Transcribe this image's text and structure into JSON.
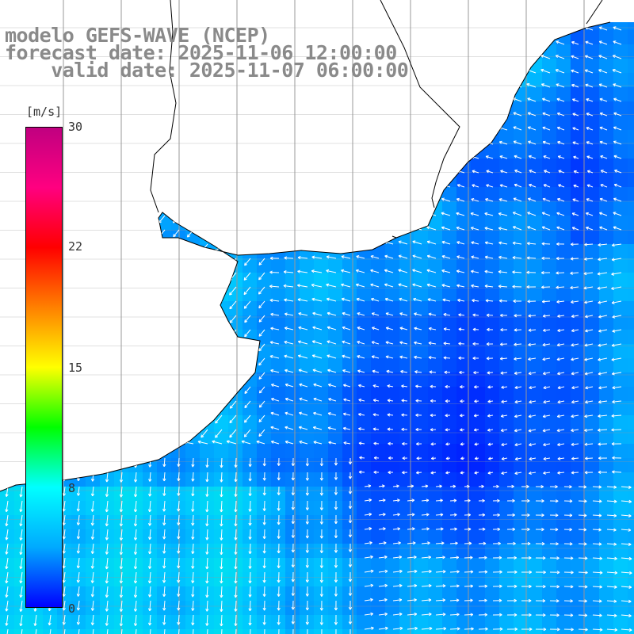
{
  "header": {
    "model_line": "modelo GEFS-WAVE (NCEP)",
    "forecast_line": "forecast date: 2025-11-06 12:00:00",
    "valid_line": "    valid date: 2025-11-07 06:00:00"
  },
  "colorbar": {
    "unit": "[m/s]",
    "ticks": [
      "30",
      "22",
      "15",
      "8",
      "0"
    ],
    "tick_values": [
      30,
      22,
      15,
      8,
      0
    ],
    "range": [
      0,
      30
    ],
    "colors": [
      "#0000ff",
      "#00aaff",
      "#00ffff",
      "#00ff00",
      "#ffff00",
      "#ff8000",
      "#ff0000",
      "#ff0080",
      "#c00080"
    ]
  },
  "map": {
    "variable": "wind speed and direction",
    "land_color": "#ffffff",
    "coast_color": "#000000",
    "grid_color": "#999999",
    "arrow_color": "#ffffff"
  }
}
